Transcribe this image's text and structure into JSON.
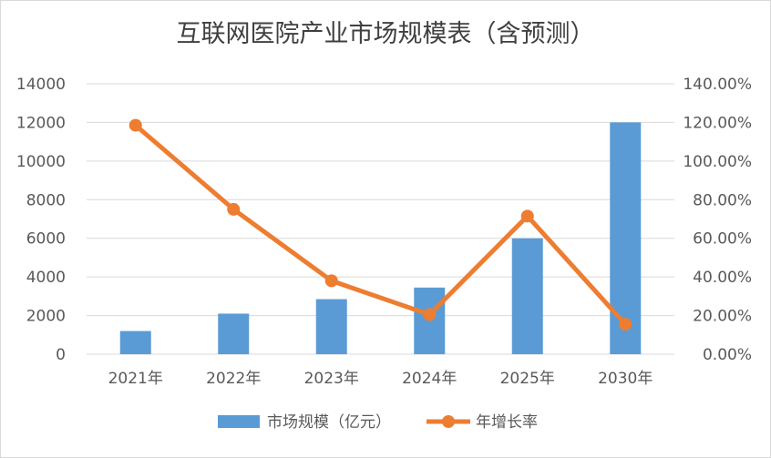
{
  "chart_data": {
    "type": "bar+line",
    "title": "互联网医院产业市场规模表（含预测）",
    "categories": [
      "2021年",
      "2022年",
      "2023年",
      "2024年",
      "2025年",
      "2030年"
    ],
    "series": [
      {
        "name": "市场规模（亿元）",
        "type": "bar",
        "axis": "left",
        "color": "#5b9bd5",
        "values": [
          1200,
          2100,
          2850,
          3450,
          6000,
          12000
        ]
      },
      {
        "name": "年增长率",
        "type": "line",
        "axis": "right",
        "color": "#ed7d31",
        "values": [
          118.5,
          75.0,
          38.0,
          20.5,
          71.5,
          15.5
        ]
      }
    ],
    "y_left": {
      "ylim": [
        0,
        14000
      ],
      "ticks": [
        "0",
        "2000",
        "4000",
        "6000",
        "8000",
        "10000",
        "12000",
        "14000"
      ]
    },
    "y_right": {
      "ylim": [
        0,
        140
      ],
      "ticks": [
        "0.00%",
        "20.00%",
        "40.00%",
        "60.00%",
        "80.00%",
        "100.00%",
        "120.00%",
        "140.00%"
      ]
    },
    "grid": true,
    "legend_position": "bottom"
  },
  "colors": {
    "bar": "#5b9bd5",
    "line": "#ed7d31",
    "grid": "#d9d9d9",
    "text": "#595959"
  }
}
